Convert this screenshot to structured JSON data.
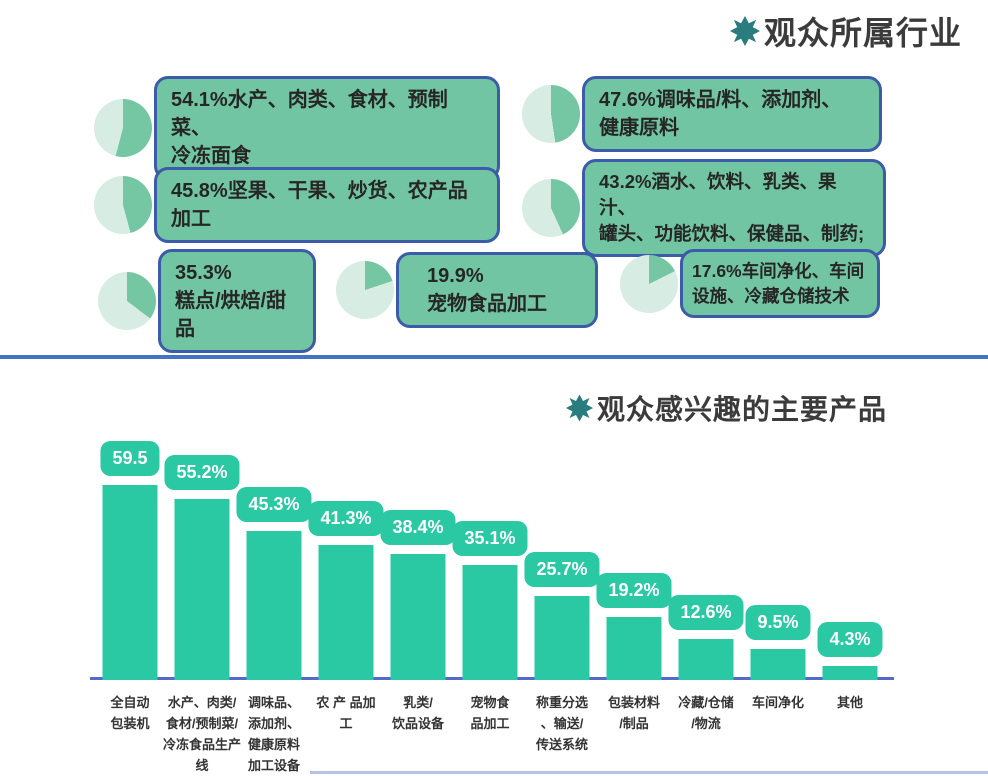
{
  "theme": {
    "bar_teal": "#2bc8a4",
    "box_green": "#72c5a2",
    "pie_dark": "#75c7a4",
    "pie_light": "#d7ece2",
    "box_border_blue": "#3c5ba8",
    "divider_blue": "#4472c4",
    "axis_blue": "#5768cb",
    "title_text": "#3b3b3b",
    "star_teal": "#2b7c7e"
  },
  "section1": {
    "title": "观众所属行业"
  },
  "section2": {
    "title": "观众感兴趣的主要产品"
  },
  "chart_data": [
    {
      "type": "pie",
      "title": "观众所属行业",
      "unit": "%",
      "items": [
        {
          "value": 54.1,
          "label": "水产、肉类、食材、预制菜、冷冻面食",
          "display_lines": [
            "54.1%水产、肉类、食材、预制菜、",
            "冷冻面食"
          ]
        },
        {
          "value": 47.6,
          "label": "调味品/料、添加剂、健康原料",
          "display_lines": [
            "47.6%调味品/料、添加剂、",
            "健康原料"
          ]
        },
        {
          "value": 45.8,
          "label": "坚果、干果、炒货、农产品加工",
          "display_lines": [
            "45.8%坚果、干果、炒货、农产品加工"
          ]
        },
        {
          "value": 43.2,
          "label": "酒水、饮料、乳类、果汁、罐头、功能饮料、保健品、制药;",
          "display_lines": [
            "43.2%酒水、饮料、乳类、果汁、",
            "罐头、功能饮料、保健品、制药;"
          ]
        },
        {
          "value": 35.3,
          "label": "糕点/烘焙/甜品",
          "display_lines": [
            "35.3%",
            "糕点/烘焙/甜品"
          ]
        },
        {
          "value": 19.9,
          "label": "宠物食品加工",
          "display_lines": [
            "19.9%",
            "宠物食品加工"
          ]
        },
        {
          "value": 17.6,
          "label": "车间净化、车间设施、冷藏仓储技术",
          "display_lines": [
            "17.6%车间净化、车间",
            "设施、冷藏仓储技术"
          ]
        }
      ]
    },
    {
      "type": "bar",
      "title": "观众感兴趣的主要产品",
      "unit": "%",
      "categories": [
        "全自动包装机",
        "水产、肉类/食材/预制菜/冷冻食品生产线",
        "调味品、添加剂、健康原料加工设备",
        "农产品加工",
        "乳类/饮品设备",
        "宠物食品加工",
        "称重分选、输送/传送系统",
        "包装材料/制品",
        "冷藏/仓储/物流",
        "车间净化",
        "其他"
      ],
      "values": [
        59.5,
        55.2,
        45.3,
        41.3,
        38.4,
        35.1,
        25.7,
        19.2,
        12.6,
        9.5,
        4.3
      ],
      "value_labels": [
        "59.5",
        "55.2%",
        "45.3%",
        "41.3%",
        "38.4%",
        "35.1%",
        "25.7%",
        "19.2%",
        "12.6%",
        "9.5%",
        "4.3%"
      ],
      "category_lines": [
        [
          "全自动",
          "包装机"
        ],
        [
          "水产、肉类/",
          "食材/预制菜/",
          "冷冻食品生产",
          "线"
        ],
        [
          "调味品、",
          "添加剂、",
          "健康原料",
          "加工设备"
        ],
        [
          "农 产 品加",
          "工"
        ],
        [
          "乳类/",
          "饮品设备"
        ],
        [
          "宠物食",
          "品加工"
        ],
        [
          "称重分选",
          "、输送/",
          "传送系统"
        ],
        [
          "包装材料",
          "/制品"
        ],
        [
          "冷藏/仓储",
          "/物流"
        ],
        [
          "车间净化"
        ],
        [
          "其他"
        ]
      ],
      "ylim": [
        0,
        60
      ],
      "grid": false,
      "legend": false,
      "bar_color": "#2bc8a4"
    }
  ]
}
